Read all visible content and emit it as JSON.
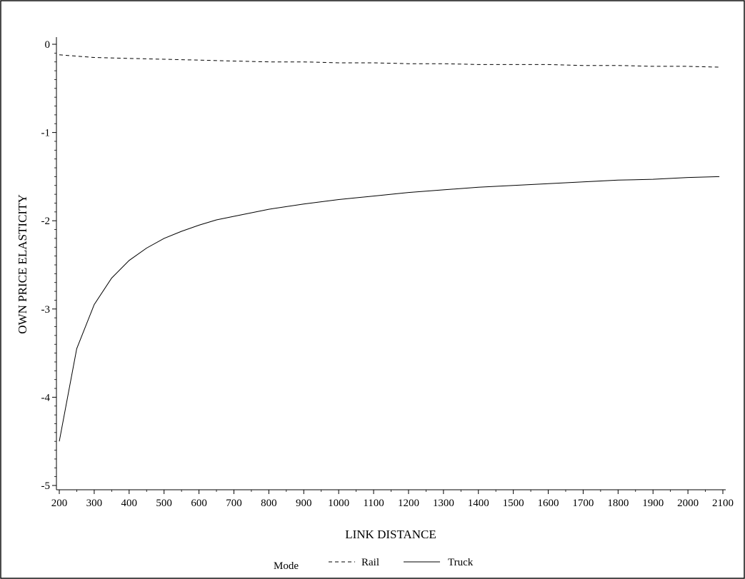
{
  "chart_data": {
    "type": "line",
    "title": "",
    "xlabel": "LINK DISTANCE",
    "ylabel": "OWN PRICE ELASTICITY",
    "xlim": [
      200,
      2100
    ],
    "ylim": [
      -5,
      0
    ],
    "x_ticks": [
      200,
      300,
      400,
      500,
      600,
      700,
      800,
      900,
      1000,
      1100,
      1200,
      1300,
      1400,
      1500,
      1600,
      1700,
      1800,
      1900,
      2000,
      2100
    ],
    "x_tick_labels": [
      "200",
      "300",
      "400",
      "500",
      "600",
      "700",
      "800",
      "900",
      "1000",
      "1100",
      "1200",
      "1300",
      "1400",
      "1500",
      "1600",
      "1700",
      "1800",
      "1900",
      "2000",
      "2100"
    ],
    "y_ticks": [
      0,
      -1,
      -2,
      -3,
      -4,
      -5
    ],
    "y_tick_labels": [
      "0",
      "-1",
      "-2",
      "-3",
      "-4",
      "-5"
    ],
    "grid": false,
    "legend": {
      "title": "Mode",
      "placement": "bottom",
      "entries": [
        "Rail",
        "Truck"
      ]
    },
    "series": [
      {
        "name": "Rail",
        "style": "dashed",
        "x": [
          200,
          300,
          400,
          500,
          600,
          700,
          800,
          900,
          1000,
          1100,
          1200,
          1300,
          1400,
          1500,
          1600,
          1700,
          1800,
          1900,
          2000,
          2090
        ],
        "y": [
          -0.12,
          -0.15,
          -0.16,
          -0.17,
          -0.18,
          -0.19,
          -0.2,
          -0.2,
          -0.21,
          -0.21,
          -0.22,
          -0.22,
          -0.23,
          -0.23,
          -0.23,
          -0.24,
          -0.24,
          -0.25,
          -0.25,
          -0.26
        ]
      },
      {
        "name": "Truck",
        "style": "solid",
        "x": [
          200,
          250,
          300,
          350,
          400,
          450,
          500,
          550,
          600,
          650,
          700,
          800,
          900,
          1000,
          1100,
          1200,
          1300,
          1400,
          1500,
          1600,
          1700,
          1800,
          1900,
          2000,
          2090
        ],
        "y": [
          -4.5,
          -3.45,
          -2.95,
          -2.65,
          -2.45,
          -2.31,
          -2.2,
          -2.12,
          -2.05,
          -1.99,
          -1.95,
          -1.87,
          -1.81,
          -1.76,
          -1.72,
          -1.68,
          -1.65,
          -1.62,
          -1.6,
          -1.58,
          -1.56,
          -1.54,
          -1.53,
          -1.51,
          -1.5
        ]
      }
    ]
  }
}
